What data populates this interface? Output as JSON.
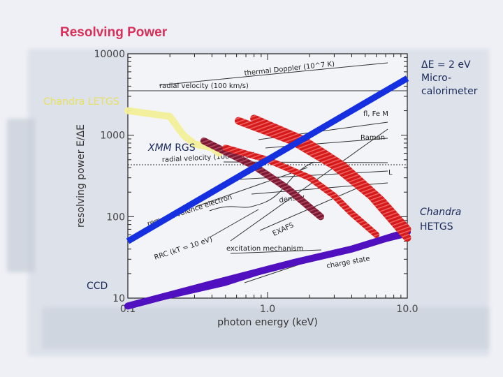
{
  "slide": {
    "title": "Resolving Power",
    "labels": {
      "chandra_letgs": "Chandra LETGS",
      "xmm_italic": "XMM",
      "xmm_rest": " RGS",
      "ccd": "CCD",
      "microcal_line1": "ΔE = 2 eV",
      "microcal_line2": "Micro-",
      "microcal_line3": "calorimeter",
      "hetgs_line1": "Chandra",
      "hetgs_line2": "HETGS"
    }
  },
  "chart_data": {
    "type": "line",
    "xlabel": "photon energy (keV)",
    "ylabel": "resolving power E/ΔE",
    "x_scale": "log",
    "y_scale": "log",
    "xlim": [
      0.1,
      10.0
    ],
    "ylim": [
      10,
      10000
    ],
    "x_ticks": [
      {
        "value": 0.1,
        "label": "0.1"
      },
      {
        "value": 1.0,
        "label": "1.0"
      },
      {
        "value": 10.0,
        "label": "10.0"
      }
    ],
    "y_ticks": [
      {
        "value": 10,
        "label": "10"
      },
      {
        "value": 100,
        "label": "100"
      },
      {
        "value": 1000,
        "label": "1000"
      },
      {
        "value": 10000,
        "label": "10000"
      }
    ],
    "series": [
      {
        "id": "microcal",
        "color": "#1530e0",
        "points": [
          [
            0.1,
            50
          ],
          [
            10.0,
            5000
          ]
        ]
      },
      {
        "id": "hetgs",
        "color": "#5010c0",
        "points": [
          [
            0.1,
            8
          ],
          [
            0.4,
            15
          ],
          [
            1.5,
            27
          ],
          [
            4.0,
            40
          ],
          [
            10.0,
            65
          ]
        ]
      },
      {
        "id": "ccd",
        "color": "#5010c0",
        "points": [
          [
            0.1,
            8
          ],
          [
            0.5,
            15
          ],
          [
            1.0,
            22
          ],
          [
            2.0,
            30
          ],
          [
            5.0,
            45
          ],
          [
            10.0,
            60
          ]
        ]
      },
      {
        "id": "letgs",
        "color": "#f2ef98",
        "points": [
          [
            0.1,
            2000
          ],
          [
            0.2,
            1700
          ],
          [
            0.25,
            1000
          ],
          [
            0.3,
            780
          ],
          [
            0.4,
            700
          ],
          [
            0.45,
            600
          ]
        ]
      },
      {
        "id": "rgs_dark",
        "color": "#8a1c3a",
        "points": [
          [
            0.35,
            850
          ],
          [
            0.8,
            420
          ],
          [
            1.4,
            220
          ],
          [
            2.0,
            130
          ],
          [
            2.4,
            100
          ]
        ]
      },
      {
        "id": "heg_a",
        "color": "#dd1e1e",
        "points": [
          [
            0.62,
            1500
          ],
          [
            1.5,
            850
          ],
          [
            3.0,
            420
          ],
          [
            5.5,
            180
          ],
          [
            10.0,
            55
          ]
        ]
      },
      {
        "id": "heg_b",
        "color": "#dd1e1e",
        "points": [
          [
            0.8,
            1600
          ],
          [
            1.8,
            880
          ],
          [
            3.5,
            420
          ],
          [
            6.5,
            160
          ],
          [
            10.0,
            70
          ]
        ]
      },
      {
        "id": "meg",
        "color": "#dd1e1e",
        "points": [
          [
            0.5,
            700
          ],
          [
            1.0,
            500
          ],
          [
            2.0,
            300
          ],
          [
            3.0,
            180
          ],
          [
            4.0,
            110
          ],
          [
            6.0,
            60
          ]
        ]
      }
    ],
    "reference_lines": [
      {
        "label": "radial velocity (100 km/s)",
        "value": 3000,
        "style": "solid"
      },
      {
        "label": "radial velocity (1000 km/s)",
        "value": 300,
        "style": "dotted"
      }
    ],
    "annotations": [
      "thermal Doppler (10^7 K)",
      "fl, Fe M",
      "Raman",
      "L",
      "density",
      "removal valence electron",
      "EXAFS",
      "RRC (kT = 10 eV)",
      "excitation mechanism",
      "charge state"
    ]
  }
}
